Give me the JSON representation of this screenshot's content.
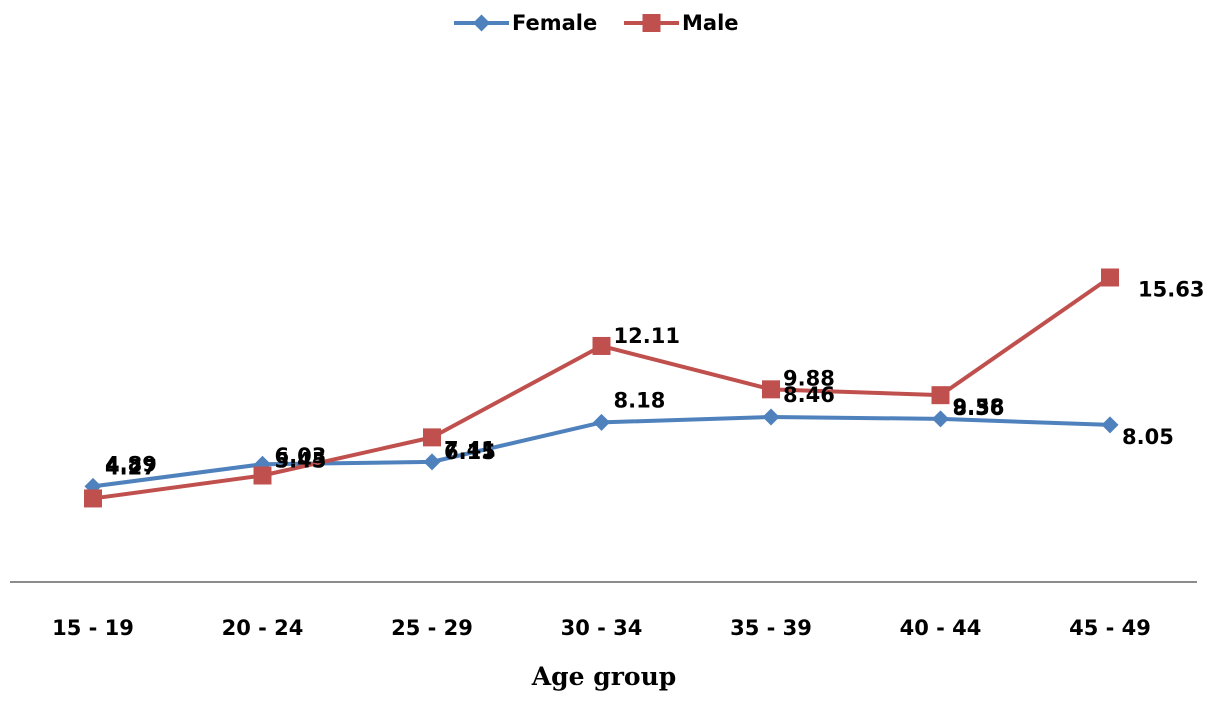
{
  "chart_data": {
    "type": "line",
    "title": "",
    "xlabel": "Age group",
    "ylabel": "",
    "categories": [
      "15 - 19",
      "20 - 24",
      "25 - 29",
      "30 - 34",
      "35 - 39",
      "40 - 44",
      "45 - 49"
    ],
    "ylim": [
      0,
      18
    ],
    "grid": false,
    "legend_position": "top-center",
    "series": [
      {
        "name": "Female",
        "values": [
          4.89,
          6.03,
          6.15,
          8.18,
          8.46,
          8.36,
          8.05
        ],
        "labels": [
          "4.89",
          "6.03",
          "6.15",
          "8.18",
          "8.46",
          "8.36",
          "8.05"
        ],
        "color": "#4F81BD",
        "marker": "diamond"
      },
      {
        "name": "Male",
        "values": [
          4.27,
          5.45,
          7.41,
          12.11,
          9.88,
          9.58,
          15.63
        ],
        "labels": [
          "4.27",
          "5.45",
          "7.41",
          "12.11",
          "9.88",
          "9.58",
          "15.63"
        ],
        "color": "#C0504D",
        "marker": "square"
      }
    ]
  }
}
